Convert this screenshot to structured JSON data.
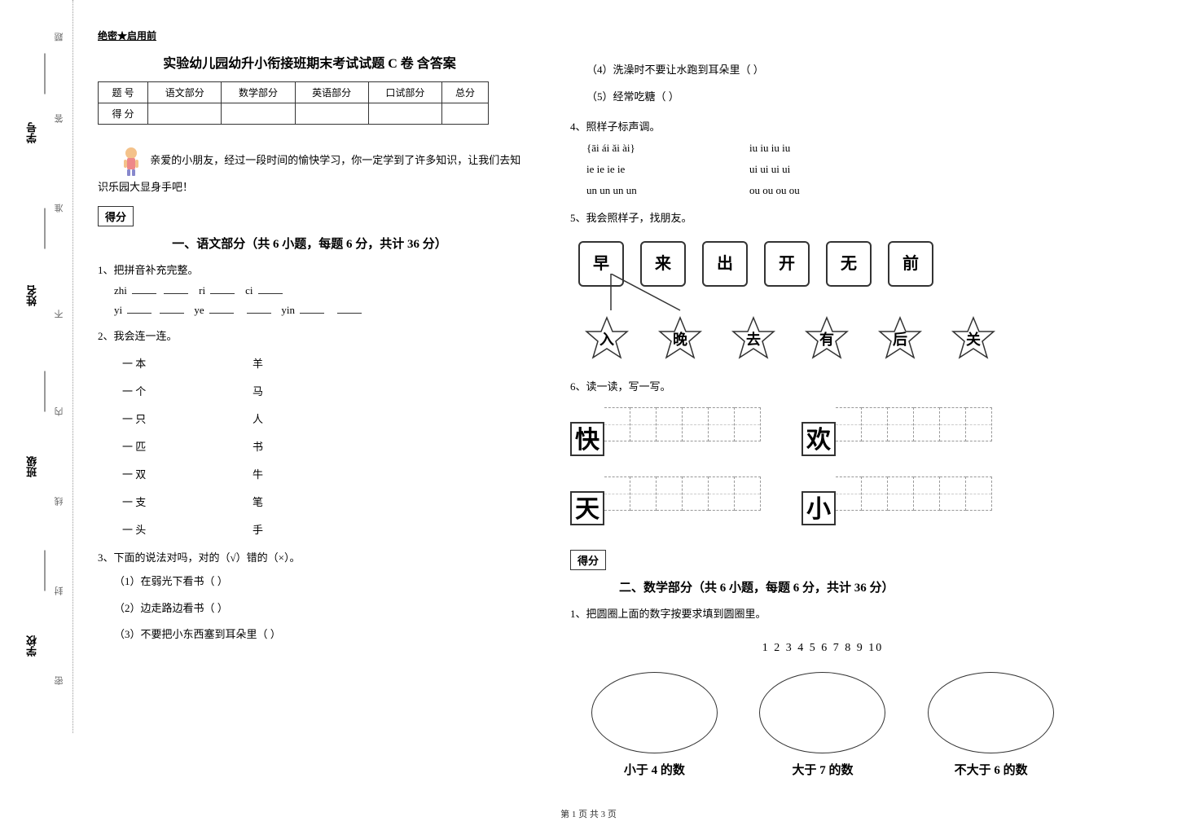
{
  "sideLabels": {
    "school": "学校",
    "class": "班级",
    "name": "姓名",
    "id": "学号"
  },
  "sealText": {
    "mi": "密",
    "feng": "封",
    "xian": "线",
    "nei": "内",
    "bu": "不",
    "zhun": "准",
    "da": "答",
    "ti": "题"
  },
  "header": "绝密★启用前",
  "title": "实验幼儿园幼升小衔接班期末考试试题 C 卷  含答案",
  "scoreTable": {
    "headers": [
      "题    号",
      "语文部分",
      "数学部分",
      "英语部分",
      "口试部分",
      "总分"
    ],
    "rowLabel": "得    分"
  },
  "intro": "亲爱的小朋友，经过一段时间的愉快学习，你一定学到了许多知识，让我们去知识乐园大显身手吧！",
  "scoreLabel": "得分",
  "section1": {
    "title": "一、语文部分（共 6 小题，每题 6 分，共计 36 分）",
    "q1": {
      "label": "1、把拼音补充完整。",
      "row1_parts": [
        "zhi",
        "ri",
        "ci"
      ],
      "row2_parts": [
        "yi",
        "ye",
        "yin"
      ]
    },
    "q2": {
      "label": "2、我会连一连。",
      "left": [
        "一  本",
        "一  个",
        "一  只",
        "一  匹",
        "一  双",
        "一  支",
        "一  头"
      ],
      "right": [
        "羊",
        "马",
        "人",
        "书",
        "牛",
        "笔",
        "手"
      ]
    },
    "q3": {
      "label": "3、下面的说法对吗，对的（√）错的（×）。",
      "items": [
        "（1）在弱光下看书（     ）",
        "（2）边走路边看书（     ）",
        "（3）不要把小东西塞到耳朵里（     ）",
        "（4）洗澡时不要让水跑到耳朵里（     ）",
        "（5）经常吃糖（          ）"
      ]
    },
    "q4": {
      "label": "4、照样子标声调。",
      "example": "{āi    ái    ǎi    ài}",
      "rows": [
        [
          "ie",
          "ie",
          "ie",
          "ie"
        ],
        [
          "un",
          "un",
          "un",
          "un"
        ]
      ],
      "rightRows": [
        [
          "iu",
          "iu",
          "iu",
          "iu"
        ],
        [
          "ui",
          "ui",
          "ui",
          "ui"
        ],
        [
          "ou",
          "ou",
          "ou",
          "ou"
        ]
      ]
    },
    "q5": {
      "label": "5、我会照样子，找朋友。",
      "top": [
        "早",
        "来",
        "出",
        "开",
        "无",
        "前"
      ],
      "bottom": [
        "入",
        "晚",
        "去",
        "有",
        "后",
        "关"
      ]
    },
    "q6": {
      "label": "6、读一读，写一写。",
      "chars": [
        "快",
        "欢",
        "天",
        "小"
      ]
    }
  },
  "section2": {
    "title": "二、数学部分（共 6 小题，每题 6 分，共计 36 分）",
    "q1": {
      "label": "1、把圆圈上面的数字按要求填到圆圈里。",
      "numbers": "1    2    3    4    5    6    7    8      9    10",
      "circles": [
        "小于 4 的数",
        "大于 7 的数",
        "不大于 6 的数"
      ]
    }
  },
  "footer": "第 1 页 共 3 页"
}
